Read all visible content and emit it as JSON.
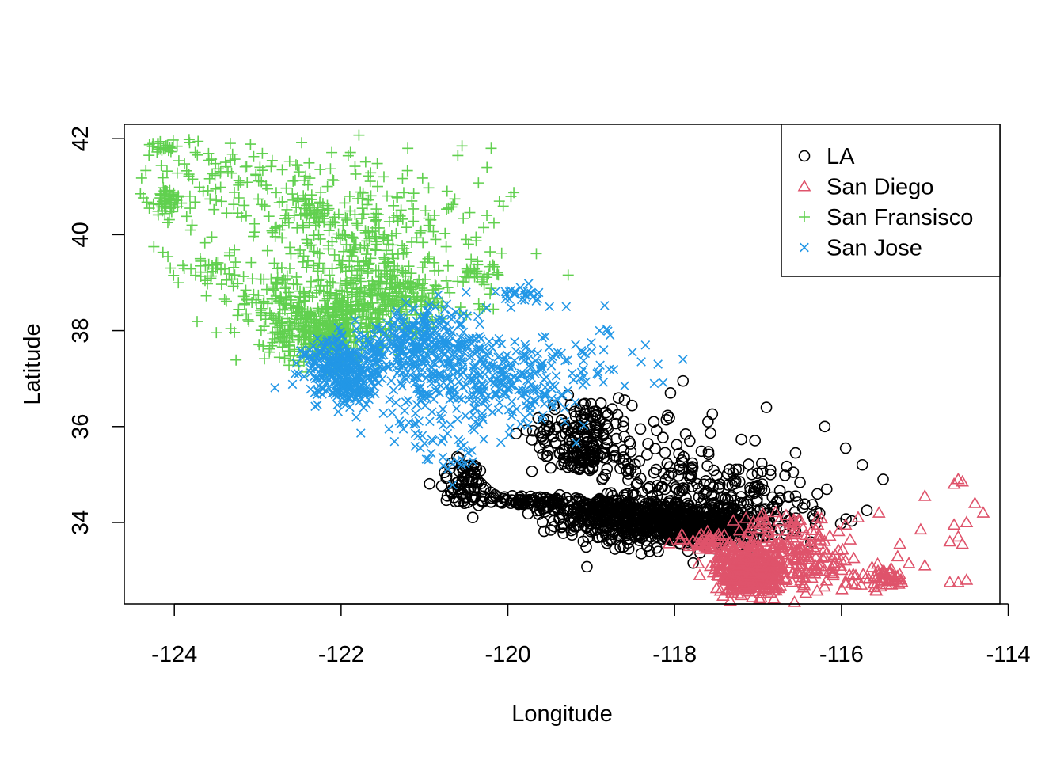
{
  "chart_data": {
    "type": "scatter",
    "title": "",
    "xlabel": "Longitude",
    "ylabel": "Latitude",
    "xlim": [
      -124.6,
      -114.1
    ],
    "ylim": [
      32.3,
      42.3
    ],
    "xticks": [
      -124,
      -122,
      -120,
      -118,
      -116,
      -114
    ],
    "yticks": [
      34,
      36,
      38,
      40,
      42
    ],
    "grid": false,
    "legend_position": "top-right",
    "series": [
      {
        "name": "LA",
        "marker": "circle",
        "color": "#000000",
        "clusters": [
          {
            "c": [
              -118.2,
              34.0
            ],
            "s": [
              0.55,
              0.22
            ],
            "n": 520
          },
          {
            "c": [
              -117.6,
              33.85
            ],
            "s": [
              0.35,
              0.18
            ],
            "n": 260
          },
          {
            "c": [
              -118.9,
              34.3
            ],
            "s": [
              0.35,
              0.12
            ],
            "n": 160
          },
          {
            "c": [
              -119.8,
              34.45
            ],
            "s": [
              0.3,
              0.06
            ],
            "n": 80
          },
          {
            "c": [
              -120.5,
              34.85
            ],
            "s": [
              0.18,
              0.25
            ],
            "n": 70
          },
          {
            "c": [
              -119.1,
              35.9
            ],
            "s": [
              0.3,
              0.35
            ],
            "n": 140
          },
          {
            "c": [
              -119.1,
              35.35
            ],
            "s": [
              0.12,
              0.1
            ],
            "n": 50
          },
          {
            "c": [
              -118.2,
              35.1
            ],
            "s": [
              0.6,
              0.45
            ],
            "n": 130
          },
          {
            "c": [
              -117.3,
              34.6
            ],
            "s": [
              0.45,
              0.35
            ],
            "n": 80
          },
          {
            "c": [
              -116.5,
              34.2
            ],
            "s": [
              0.35,
              0.15
            ],
            "n": 30
          }
        ],
        "points": [
          [
            -116.9,
            36.4
          ],
          [
            -116.2,
            36.0
          ],
          [
            -115.95,
            35.55
          ],
          [
            -115.75,
            35.2
          ],
          [
            -115.5,
            34.9
          ],
          [
            -116.55,
            35.45
          ],
          [
            -117.9,
            36.95
          ],
          [
            -118.05,
            36.7
          ],
          [
            -117.6,
            36.1
          ],
          [
            -118.6,
            36.55
          ],
          [
            -118.25,
            36.1
          ],
          [
            -119.5,
            35.95
          ],
          [
            -118.4,
            33.35
          ],
          [
            -118.55,
            33.45
          ],
          [
            -118.3,
            33.4
          ],
          [
            -116.95,
            34.8
          ],
          [
            -116.55,
            34.55
          ],
          [
            -116.85,
            35.0
          ],
          [
            -119.2,
            34.05
          ]
        ]
      },
      {
        "name": "San Diego",
        "marker": "triangle",
        "color": "#DF536B",
        "clusters": [
          {
            "c": [
              -117.1,
              32.95
            ],
            "s": [
              0.2,
              0.22
            ],
            "n": 340
          },
          {
            "c": [
              -116.9,
              33.35
            ],
            "s": [
              0.35,
              0.25
            ],
            "n": 150
          },
          {
            "c": [
              -116.3,
              33.0
            ],
            "s": [
              0.4,
              0.25
            ],
            "n": 80
          },
          {
            "c": [
              -115.5,
              32.85
            ],
            "s": [
              0.15,
              0.12
            ],
            "n": 45
          },
          {
            "c": [
              -116.6,
              33.95
            ],
            "s": [
              0.3,
              0.12
            ],
            "n": 40
          },
          {
            "c": [
              -117.6,
              33.6
            ],
            "s": [
              0.2,
              0.1
            ],
            "n": 40
          }
        ],
        "points": [
          [
            -114.6,
            34.9
          ],
          [
            -114.55,
            34.85
          ],
          [
            -114.65,
            34.8
          ],
          [
            -114.4,
            34.4
          ],
          [
            -114.3,
            34.2
          ],
          [
            -114.5,
            34.0
          ],
          [
            -114.6,
            33.7
          ],
          [
            -114.7,
            33.6
          ],
          [
            -114.55,
            33.55
          ],
          [
            -114.65,
            33.95
          ],
          [
            -115.0,
            34.55
          ],
          [
            -115.05,
            33.85
          ],
          [
            -115.3,
            33.55
          ],
          [
            -115.0,
            33.1
          ],
          [
            -114.6,
            32.75
          ],
          [
            -114.7,
            32.75
          ],
          [
            -114.5,
            32.8
          ],
          [
            -115.55,
            34.2
          ],
          [
            -115.95,
            33.95
          ],
          [
            -115.8,
            34.1
          ]
        ]
      },
      {
        "name": "San Fransisco",
        "marker": "plus",
        "color": "#61D04F",
        "clusters": [
          {
            "c": [
              -122.2,
              37.9
            ],
            "s": [
              0.35,
              0.3
            ],
            "n": 320
          },
          {
            "c": [
              -121.4,
              38.7
            ],
            "s": [
              0.5,
              0.35
            ],
            "n": 300
          },
          {
            "c": [
              -122.6,
              38.5
            ],
            "s": [
              0.45,
              0.3
            ],
            "n": 150
          },
          {
            "c": [
              -121.9,
              39.7
            ],
            "s": [
              0.35,
              0.4
            ],
            "n": 110
          },
          {
            "c": [
              -122.35,
              40.5
            ],
            "s": [
              0.12,
              0.15
            ],
            "n": 45
          },
          {
            "c": [
              -124.1,
              40.7
            ],
            "s": [
              0.1,
              0.15
            ],
            "n": 45
          },
          {
            "c": [
              -124.15,
              41.8
            ],
            "s": [
              0.08,
              0.05
            ],
            "n": 20
          },
          {
            "c": [
              -122.8,
              40.8
            ],
            "s": [
              0.9,
              0.65
            ],
            "n": 150
          },
          {
            "c": [
              -121.1,
              40.2
            ],
            "s": [
              0.7,
              0.5
            ],
            "n": 80
          },
          {
            "c": [
              -123.6,
              39.3
            ],
            "s": [
              0.3,
              0.2
            ],
            "n": 40
          },
          {
            "c": [
              -120.35,
              39.2
            ],
            "s": [
              0.12,
              0.1
            ],
            "n": 20
          },
          {
            "c": [
              -123.4,
              41.4
            ],
            "s": [
              0.7,
              0.35
            ],
            "n": 40
          }
        ],
        "points": [
          [
            -120.2,
            41.8
          ],
          [
            -120.6,
            41.65
          ],
          [
            -120.55,
            41.85
          ],
          [
            -121.2,
            41.8
          ],
          [
            -124.3,
            40.55
          ],
          [
            -124.2,
            41.9
          ],
          [
            -120.25,
            41.4
          ],
          [
            -120.5,
            39.9
          ]
        ]
      },
      {
        "name": "San Jose",
        "marker": "cross",
        "color": "#2297E6",
        "clusters": [
          {
            "c": [
              -122.0,
              37.25
            ],
            "s": [
              0.22,
              0.3
            ],
            "n": 280
          },
          {
            "c": [
              -121.9,
              36.75
            ],
            "s": [
              0.12,
              0.15
            ],
            "n": 70
          },
          {
            "c": [
              -121.1,
              37.6
            ],
            "s": [
              0.4,
              0.3
            ],
            "n": 220
          },
          {
            "c": [
              -120.6,
              37.1
            ],
            "s": [
              0.55,
              0.4
            ],
            "n": 150
          },
          {
            "c": [
              -119.9,
              36.85
            ],
            "s": [
              0.45,
              0.4
            ],
            "n": 140
          },
          {
            "c": [
              -120.9,
              38.1
            ],
            "s": [
              0.3,
              0.25
            ],
            "n": 80
          },
          {
            "c": [
              -120.7,
              35.6
            ],
            "s": [
              0.25,
              0.3
            ],
            "n": 35
          },
          {
            "c": [
              -121.3,
              36.3
            ],
            "s": [
              0.3,
              0.3
            ],
            "n": 30
          },
          {
            "c": [
              -119.9,
              38.75
            ],
            "s": [
              0.15,
              0.1
            ],
            "n": 25
          },
          {
            "c": [
              -119.2,
              37.2
            ],
            "s": [
              0.5,
              0.4
            ],
            "n": 40
          }
        ],
        "points": [
          [
            -119.0,
            37.75
          ],
          [
            -118.85,
            37.6
          ],
          [
            -118.4,
            37.35
          ],
          [
            -118.35,
            37.7
          ],
          [
            -118.2,
            37.3
          ],
          [
            -117.9,
            37.4
          ],
          [
            -118.6,
            36.85
          ],
          [
            -119.5,
            38.5
          ],
          [
            -119.3,
            38.5
          ],
          [
            -118.9,
            38.0
          ],
          [
            -119.85,
            38.9
          ],
          [
            -119.7,
            38.7
          ],
          [
            -120.5,
            38.8
          ],
          [
            -121.05,
            35.55
          ],
          [
            -121.0,
            35.65
          ],
          [
            -120.1,
            36.5
          ],
          [
            -120.3,
            36.15
          ]
        ]
      }
    ]
  }
}
